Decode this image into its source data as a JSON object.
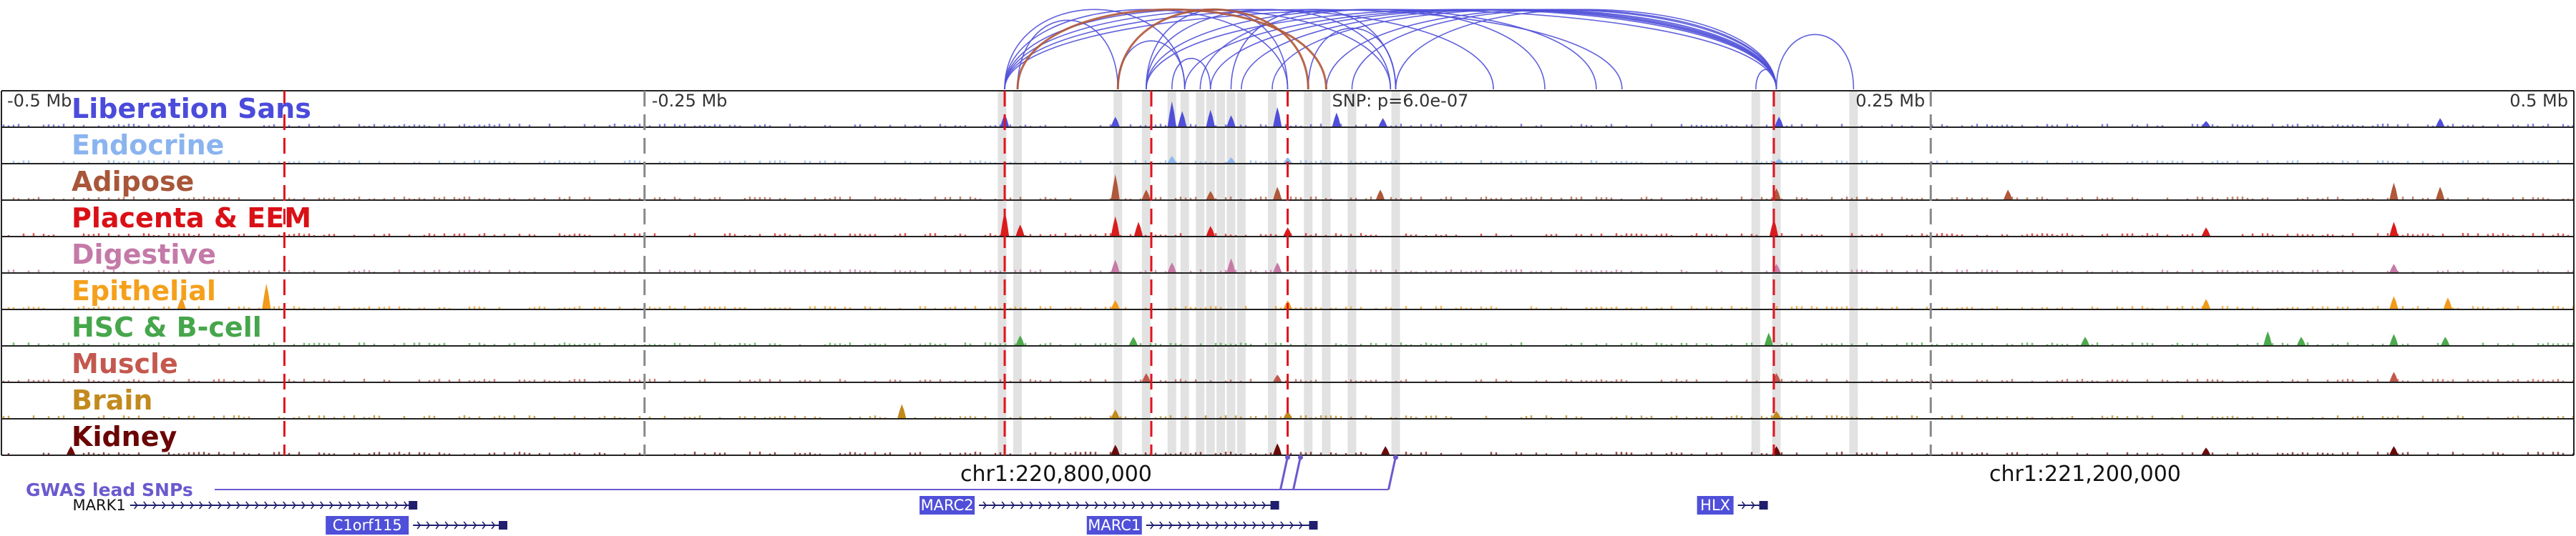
{
  "chart_data": {
    "type": "genome-browser",
    "title": "",
    "region": {
      "chrom": "chr1",
      "start_mb_offset": -0.5,
      "end_mb_offset": 0.5
    },
    "axis_ticks": [
      {
        "label": "-0.5 Mb",
        "offset": -0.5
      },
      {
        "label": "-0.25 Mb",
        "offset": -0.25
      },
      {
        "label": "0.25 Mb",
        "offset": 0.25
      },
      {
        "label": "0.5 Mb",
        "offset": 0.5
      }
    ],
    "snp_annotation": {
      "label": "SNP: p=6.0e-07",
      "offset": 0.0
    },
    "coordinate_labels": [
      {
        "label": "chr1:220,800,000",
        "offset": -0.09
      },
      {
        "label": "chr1:221,200,000",
        "offset": 0.31
      }
    ],
    "red_dashed_lines": [
      -0.39,
      -0.11,
      -0.053,
      0.0,
      0.189
    ],
    "gray_dashed_lines": [
      -0.25,
      0.25
    ],
    "highlight_regions": [
      -0.111,
      -0.105,
      -0.066,
      -0.055,
      -0.045,
      -0.04,
      -0.034,
      -0.03,
      -0.026,
      -0.022,
      -0.018,
      -0.006,
      0.008,
      0.015,
      0.025,
      0.042,
      0.182,
      0.19,
      0.22
    ],
    "tracks": [
      {
        "name": "Liberation Sans",
        "color": "#4f4fd9",
        "label_color": "#4b4bdb",
        "peaks": [
          [
            -0.11,
            0.45
          ],
          [
            -0.067,
            0.35
          ],
          [
            -0.045,
            0.9
          ],
          [
            -0.041,
            0.55
          ],
          [
            -0.03,
            0.6
          ],
          [
            -0.022,
            0.4
          ],
          [
            -0.004,
            0.7
          ],
          [
            0.019,
            0.5
          ],
          [
            0.037,
            0.3
          ],
          [
            0.191,
            0.35
          ],
          [
            0.357,
            0.2
          ],
          [
            0.448,
            0.3
          ]
        ]
      },
      {
        "name": "Endocrine",
        "color": "#8fb8ee",
        "label_color": "#8ab4ef",
        "peaks": [
          [
            -0.045,
            0.25
          ],
          [
            -0.022,
            0.2
          ],
          [
            0.0,
            0.2
          ],
          [
            0.191,
            0.15
          ]
        ]
      },
      {
        "name": "Adipose",
        "color": "#b0583a",
        "label_color": "#a8563a",
        "peaks": [
          [
            -0.067,
            0.9
          ],
          [
            -0.055,
            0.35
          ],
          [
            -0.03,
            0.3
          ],
          [
            -0.004,
            0.45
          ],
          [
            0.036,
            0.35
          ],
          [
            0.19,
            0.4
          ],
          [
            0.28,
            0.35
          ],
          [
            0.43,
            0.6
          ],
          [
            0.448,
            0.45
          ]
        ]
      },
      {
        "name": "Placenta & EEM",
        "color": "#d91c1c",
        "label_color": "#d91016",
        "peaks": [
          [
            -0.11,
            0.9
          ],
          [
            -0.104,
            0.4
          ],
          [
            -0.067,
            0.7
          ],
          [
            -0.058,
            0.5
          ],
          [
            -0.03,
            0.35
          ],
          [
            0.0,
            0.3
          ],
          [
            0.189,
            0.6
          ],
          [
            0.357,
            0.3
          ],
          [
            0.43,
            0.5
          ]
        ]
      },
      {
        "name": "Digestive",
        "color": "#c77aa6",
        "label_color": "#c47aa8",
        "peaks": [
          [
            -0.067,
            0.45
          ],
          [
            -0.045,
            0.35
          ],
          [
            -0.022,
            0.5
          ],
          [
            -0.004,
            0.35
          ],
          [
            0.19,
            0.3
          ],
          [
            0.43,
            0.3
          ]
        ]
      },
      {
        "name": "Epithelial",
        "color": "#f29a1a",
        "label_color": "#f5a01c",
        "peaks": [
          [
            -0.43,
            0.4
          ],
          [
            -0.397,
            0.9
          ],
          [
            -0.067,
            0.3
          ],
          [
            0.0,
            0.3
          ],
          [
            0.357,
            0.35
          ],
          [
            0.43,
            0.45
          ],
          [
            0.451,
            0.4
          ]
        ]
      },
      {
        "name": "HSC & B-cell",
        "color": "#4caa4c",
        "label_color": "#46a64b",
        "peaks": [
          [
            -0.104,
            0.35
          ],
          [
            -0.06,
            0.3
          ],
          [
            0.187,
            0.45
          ],
          [
            0.31,
            0.3
          ],
          [
            0.381,
            0.5
          ],
          [
            0.394,
            0.3
          ],
          [
            0.43,
            0.4
          ],
          [
            0.45,
            0.3
          ]
        ]
      },
      {
        "name": "Muscle",
        "color": "#c0584e",
        "label_color": "#c4584f",
        "peaks": [
          [
            -0.055,
            0.3
          ],
          [
            -0.004,
            0.25
          ],
          [
            0.19,
            0.3
          ],
          [
            0.43,
            0.35
          ]
        ]
      },
      {
        "name": "Brain",
        "color": "#c08a1c",
        "label_color": "#c28a1e",
        "peaks": [
          [
            -0.15,
            0.5
          ],
          [
            -0.067,
            0.3
          ],
          [
            0.0,
            0.25
          ],
          [
            0.19,
            0.25
          ]
        ]
      },
      {
        "name": "Kidney",
        "color": "#6b0a0a",
        "label_color": "#6b0505",
        "peaks": [
          [
            -0.473,
            0.3
          ],
          [
            -0.067,
            0.35
          ],
          [
            -0.004,
            0.4
          ],
          [
            0.038,
            0.3
          ],
          [
            0.19,
            0.3
          ],
          [
            0.357,
            0.25
          ],
          [
            0.43,
            0.3
          ]
        ]
      }
    ],
    "arcs": {
      "color_blue": "#4f4fd9",
      "color_brown": "#b0583a",
      "blue": [
        [
          -0.11,
          -0.04
        ],
        [
          -0.11,
          0.0
        ],
        [
          -0.11,
          0.04
        ],
        [
          -0.11,
          0.08
        ],
        [
          -0.11,
          0.13
        ],
        [
          -0.11,
          0.19
        ],
        [
          -0.105,
          -0.066
        ],
        [
          -0.066,
          -0.04
        ],
        [
          -0.055,
          0.0
        ],
        [
          -0.055,
          0.04
        ],
        [
          -0.055,
          0.12
        ],
        [
          -0.055,
          0.19
        ],
        [
          -0.045,
          -0.03
        ],
        [
          -0.04,
          0.19
        ],
        [
          -0.034,
          0.1
        ],
        [
          -0.03,
          0.19
        ],
        [
          -0.022,
          0.042
        ],
        [
          -0.018,
          0.19
        ],
        [
          -0.006,
          0.19
        ],
        [
          0.008,
          0.042
        ],
        [
          0.015,
          0.19
        ],
        [
          0.025,
          0.19
        ],
        [
          0.042,
          0.19
        ],
        [
          0.182,
          0.19
        ],
        [
          0.19,
          0.22
        ]
      ],
      "brown": [
        [
          -0.105,
          0.015
        ],
        [
          -0.066,
          0.008
        ]
      ]
    },
    "gwas": {
      "label": "GWAS lead SNPs",
      "color": "#6a5acd",
      "positions": [
        0.0,
        0.005,
        0.042
      ]
    },
    "genes": [
      {
        "name": "MARK1",
        "start": -0.45,
        "end": -0.34,
        "strand": "+",
        "row": 0,
        "label_boxed": false
      },
      {
        "name": "C1orf115",
        "start": -0.34,
        "end": -0.305,
        "strand": "+",
        "row": 1,
        "label_boxed": true
      },
      {
        "name": "MARC2",
        "start": -0.12,
        "end": -0.005,
        "strand": "+",
        "row": 0,
        "label_boxed": true
      },
      {
        "name": "MARC1",
        "start": -0.055,
        "end": 0.01,
        "strand": "+",
        "row": 1,
        "label_boxed": true
      },
      {
        "name": "HLX",
        "start": 0.175,
        "end": 0.185,
        "strand": "+",
        "row": 0,
        "label_boxed": true
      }
    ],
    "gene_color": "#1f1f6e",
    "gene_box_color": "#4f4fd9"
  }
}
